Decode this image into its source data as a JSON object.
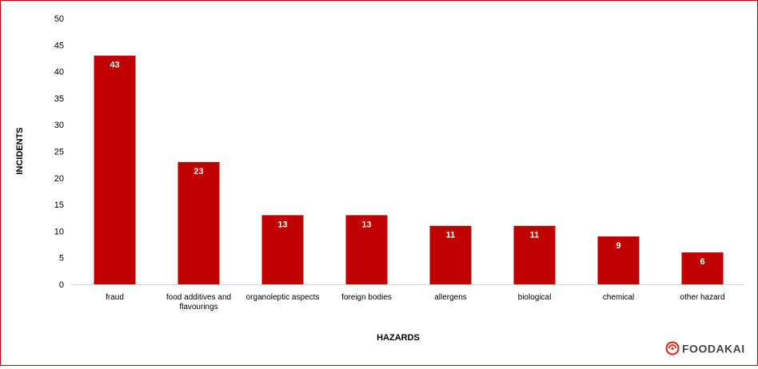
{
  "chart_data": {
    "type": "bar",
    "title": "",
    "xlabel": "HAZARDS",
    "ylabel": "INCIDENTS",
    "ylim": [
      0,
      50
    ],
    "yticks": [
      0,
      5,
      10,
      15,
      20,
      25,
      30,
      35,
      40,
      45,
      50
    ],
    "grid": false,
    "categories": [
      [
        "fraud"
      ],
      [
        "food additives and",
        "flavourings"
      ],
      [
        "organoleptic aspects"
      ],
      [
        "foreign bodies"
      ],
      [
        "allergens"
      ],
      [
        "biological"
      ],
      [
        "chemical"
      ],
      [
        "other hazard"
      ]
    ],
    "values": [
      43,
      23,
      13,
      13,
      11,
      11,
      9,
      6
    ],
    "bar_color": "#c00000",
    "value_label_color": "#ffffff"
  },
  "brand": {
    "name": "FOODAKAI",
    "icon": "foodakai-logo-icon",
    "color": "#d9342b"
  },
  "frame_color": "#c00000"
}
